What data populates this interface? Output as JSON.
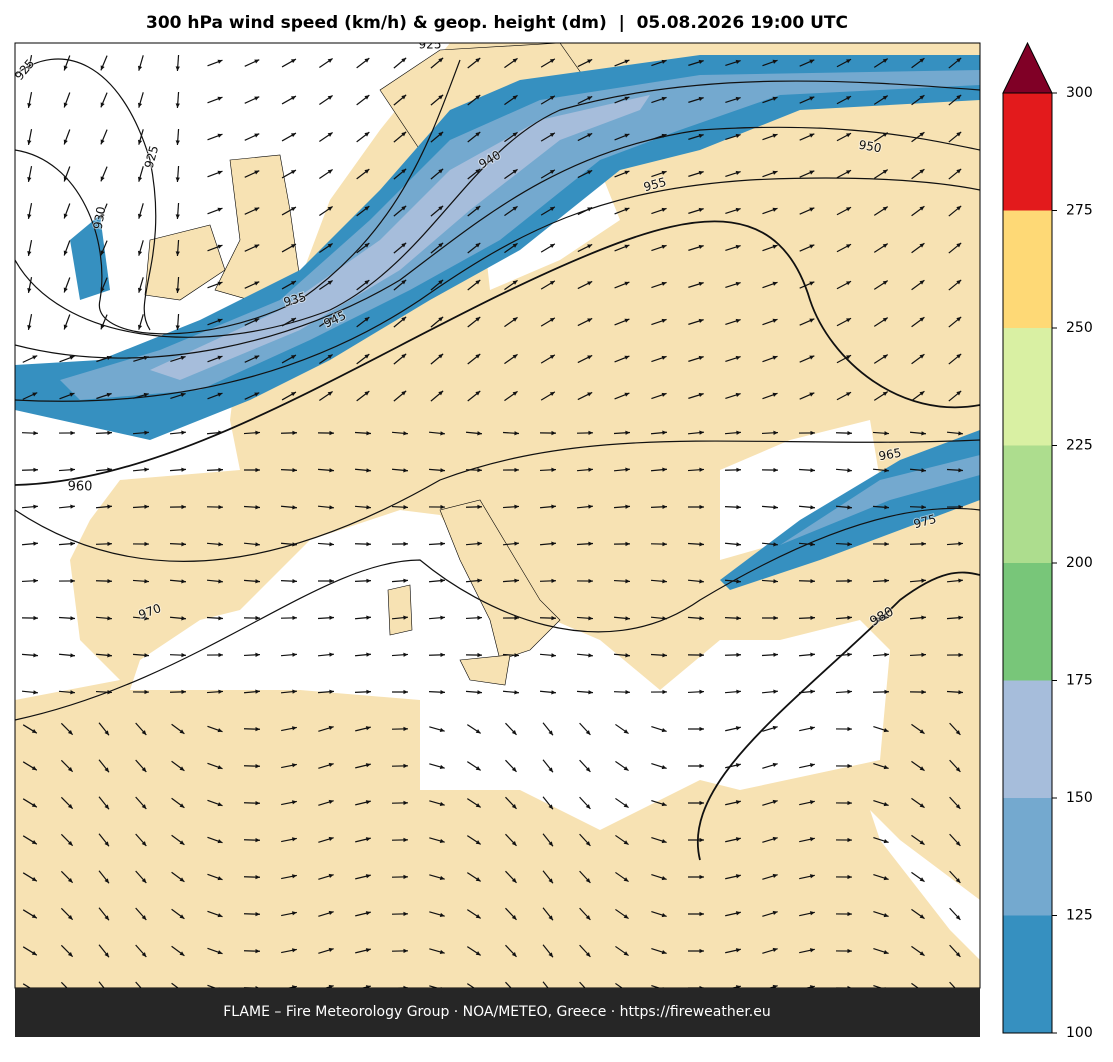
{
  "title": "300 hPa wind speed (km/h) & geop. height (dm)  |  05.08.2026 19:00 UTC",
  "footer": "FLAME – Fire Meteorology Group · NOA/METEO, Greece · https://fireweather.eu",
  "colorbar": {
    "ticks": [
      100,
      125,
      150,
      175,
      200,
      225,
      250,
      275,
      300
    ],
    "colors": [
      "#3690c0",
      "#74a9cf",
      "#a6bddb",
      "#78c679",
      "#addd8e",
      "#d9f0a3",
      "#fed976",
      "#e31a1c"
    ],
    "extend_color": "#800026"
  },
  "contour_labels": [
    925,
    925,
    925,
    930,
    935,
    940,
    945,
    950,
    955,
    960,
    965,
    970,
    975,
    980
  ]
}
